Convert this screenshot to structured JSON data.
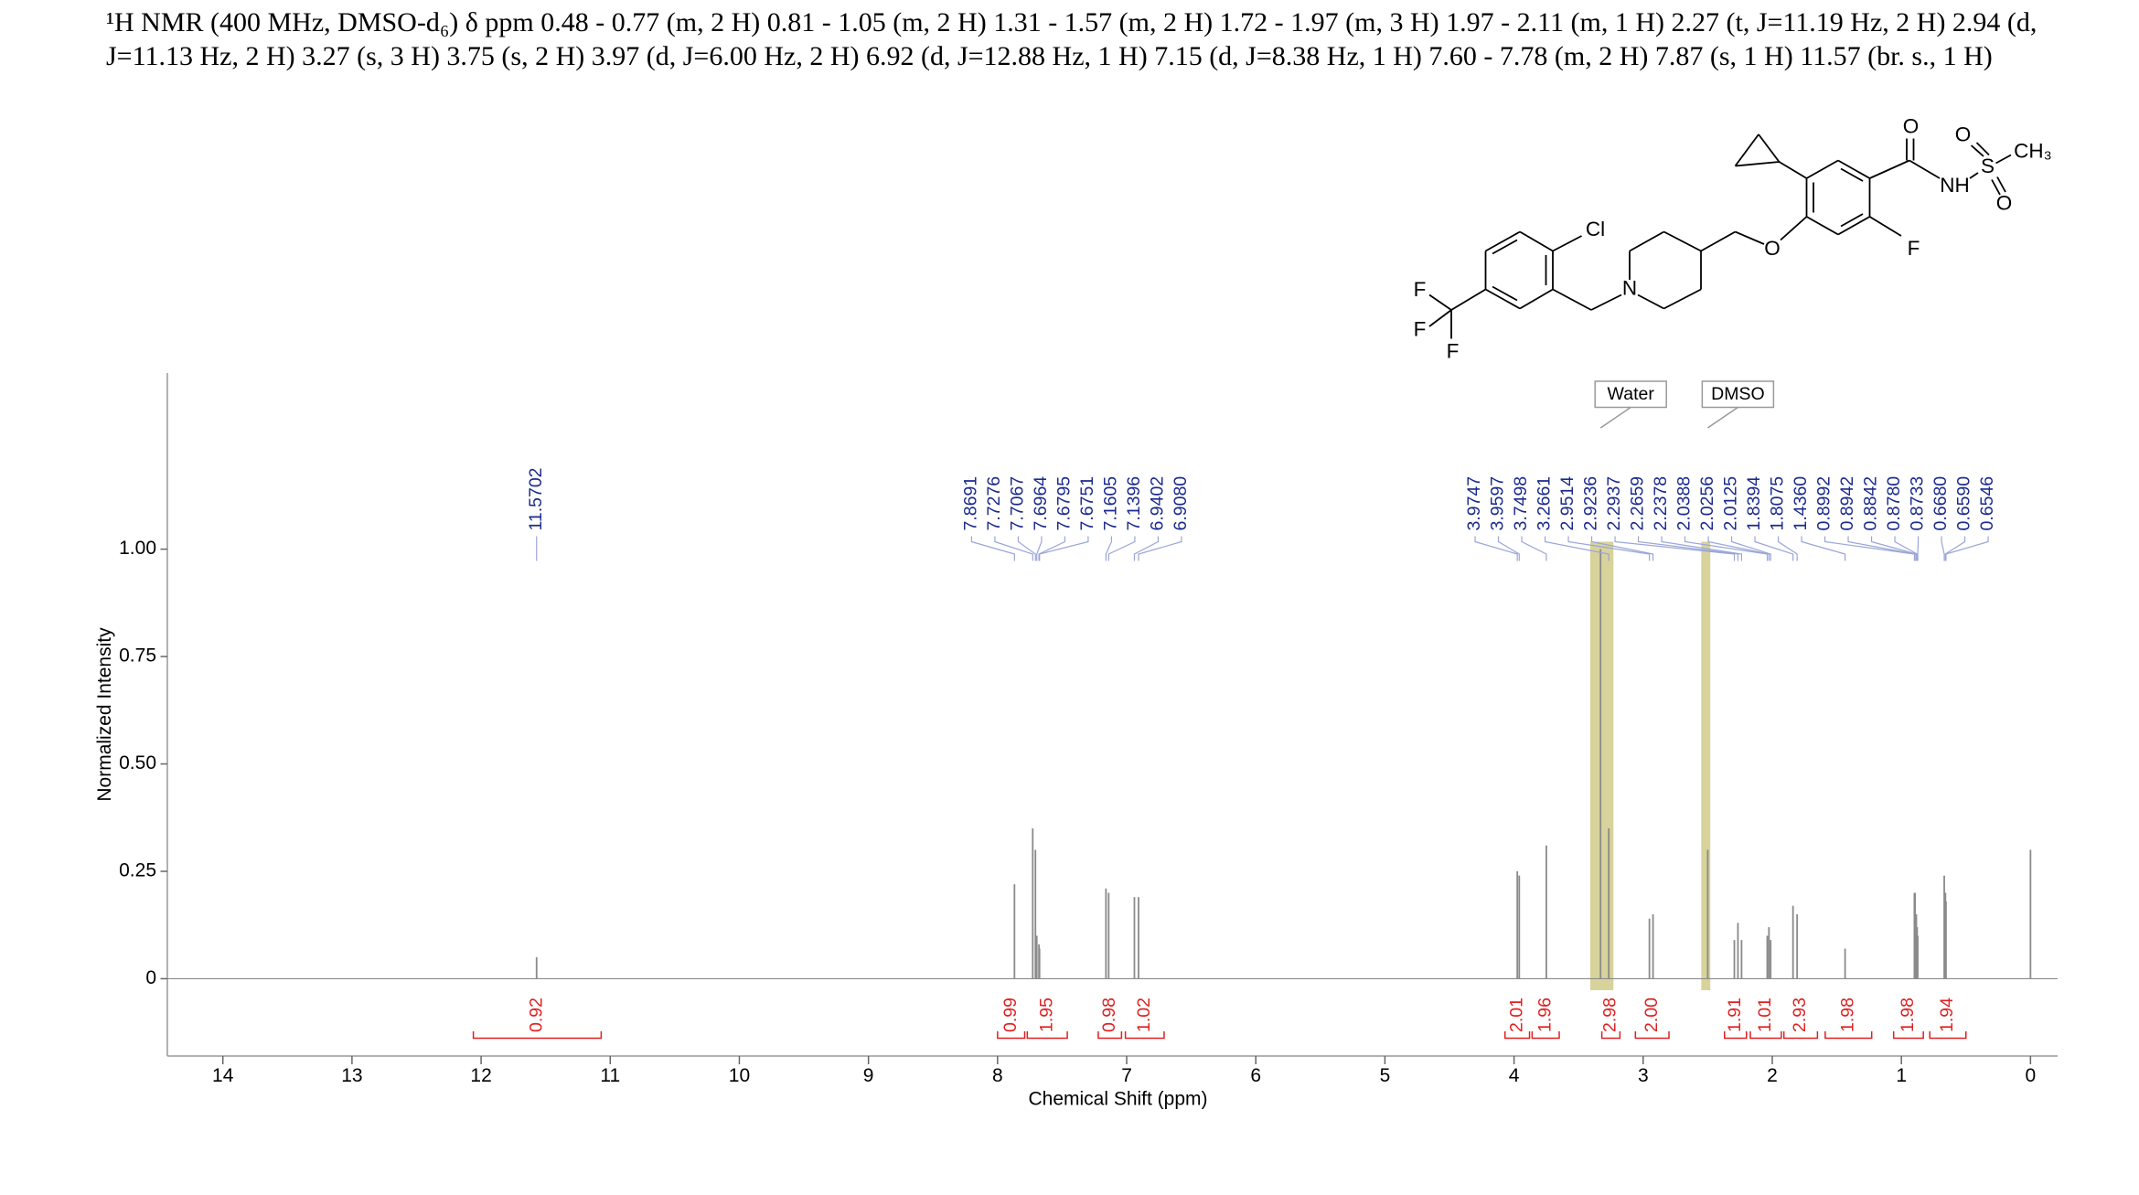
{
  "header": {
    "text": "¹H NMR (400 MHz, DMSO-d₆) δ ppm 0.48 - 0.77 (m, 2 H) 0.81 - 1.05 (m, 2 H) 1.31 - 1.57 (m, 2 H) 1.72 - 1.97 (m, 3 H) 1.97 - 2.11 (m, 1 H) 2.27 (t, J=11.19 Hz, 2 H) 2.94 (d, J=11.13 Hz, 2 H) 3.27 (s, 3 H) 3.75 (s, 2 H) 3.97 (d, J=6.00 Hz, 2 H) 6.92 (d, J=12.88 Hz, 1 H) 7.15 (d, J=8.38 Hz, 1 H) 7.60 - 7.78 (m, 2 H) 7.87 (s, 1 H) 11.57 (br. s., 1 H)"
  },
  "molecule": {
    "atoms": [
      "O",
      "O",
      "S",
      "CH₃",
      "NH",
      "O",
      "F",
      "O",
      "N",
      "Cl",
      "F",
      "F",
      "F"
    ]
  },
  "chart_data": {
    "type": "nmr",
    "x_label": "Chemical Shift (ppm)",
    "y_label": "Normalized Intensity",
    "xlim": [
      14.43,
      -0.21
    ],
    "xticks": [
      14,
      13,
      12,
      11,
      10,
      9,
      8,
      7,
      6,
      5,
      4,
      3,
      2,
      1,
      0
    ],
    "ylim": [
      -0.18,
      1.41
    ],
    "yticks": [
      0,
      0.25,
      {
        "value": 0.5,
        "label": "0.50"
      },
      0.75,
      {
        "value": 1,
        "label": "1.00"
      }
    ],
    "series": [
      {
        "name": "spectrum",
        "color": "#8a8a8a",
        "x": [
          11.5702,
          7.8691,
          7.7276,
          7.7067,
          7.6964,
          7.6795,
          7.6751,
          7.1605,
          7.1396,
          6.9402,
          6.908,
          3.9747,
          3.9597,
          3.7498,
          3.33,
          3.2661,
          2.9514,
          2.9236,
          2.5,
          2.2937,
          2.2659,
          2.2378,
          2.0388,
          2.0256,
          2.0125,
          1.8394,
          1.8075,
          1.436,
          0.8992,
          0.8942,
          0.8842,
          0.878,
          0.8733,
          0.668,
          0.659,
          0.6546,
          0
        ],
        "values": [
          0.05,
          0.22,
          0.35,
          0.3,
          0.1,
          0.08,
          0.07,
          0.21,
          0.2,
          0.19,
          0.19,
          0.25,
          0.24,
          0.31,
          1.0,
          0.35,
          0.14,
          0.15,
          0.3,
          0.09,
          0.13,
          0.09,
          0.1,
          0.12,
          0.09,
          0.17,
          0.15,
          0.07,
          0.2,
          0.2,
          0.15,
          0.12,
          0.1,
          0.24,
          0.2,
          0.18,
          0.3
        ]
      }
    ],
    "peak_labels": {
      "color": "#1a2a8c",
      "values": [
        11.5702,
        7.8691,
        7.7276,
        7.7067,
        7.6964,
        7.6795,
        7.6751,
        7.1605,
        7.1396,
        6.9402,
        6.908,
        3.9747,
        3.9597,
        3.7498,
        3.2661,
        2.9514,
        2.9236,
        2.2937,
        2.2659,
        2.2378,
        2.0388,
        2.0256,
        2.0125,
        1.8394,
        1.8075,
        1.436,
        0.8992,
        0.8942,
        0.8842,
        0.878,
        0.8733,
        0.668,
        0.659,
        0.6546
      ],
      "value_labels": [
        "11.5702",
        "7.8691",
        "7.7276",
        "7.7067",
        "7.6964",
        "7.6795",
        "7.6751",
        "7.1605",
        "7.1396",
        "6.9402",
        "6.9080",
        "3.9747",
        "3.9597",
        "3.7498",
        "3.2661",
        "2.9514",
        "2.9236",
        "2.2937",
        "2.2659",
        "2.2378",
        "2.0388",
        "2.0256",
        "2.0125",
        "1.8394",
        "1.8075",
        "1.4360",
        "0.8992",
        "0.8942",
        "0.8842",
        "0.8780",
        "0.8733",
        "0.6680",
        "0.6590",
        "0.6546"
      ]
    },
    "integrals": {
      "color": "#e02020",
      "values": [
        0.92,
        0.99,
        1.95,
        0.98,
        1.02,
        2.01,
        1.96,
        2.98,
        2.0,
        1.91,
        1.01,
        2.93,
        1.98,
        1.98,
        1.94
      ],
      "value_labels": [
        "0.92",
        "0.99",
        "1.95",
        "0.98",
        "1.02",
        "2.01",
        "1.96",
        "2.98",
        "2.00",
        "1.91",
        "1.01",
        "2.93",
        "1.98",
        "1.98",
        "1.94"
      ],
      "ranges": [
        [
          12.06,
          11.07
        ],
        [
          8.0,
          7.79
        ],
        [
          7.77,
          7.46
        ],
        [
          7.22,
          7.04
        ],
        [
          7.01,
          6.71
        ],
        [
          4.07,
          3.88
        ],
        [
          3.86,
          3.65
        ],
        [
          3.32,
          3.18
        ],
        [
          3.06,
          2.8
        ],
        [
          2.37,
          2.2
        ],
        [
          2.17,
          1.93
        ],
        [
          1.91,
          1.65
        ],
        [
          1.59,
          1.23
        ],
        [
          1.06,
          0.83
        ],
        [
          0.78,
          0.5
        ]
      ]
    },
    "annotations": [
      {
        "text": "Water",
        "x": 3.33,
        "band": [
          3.41,
          3.23
        ]
      },
      {
        "text": "DMSO",
        "x": 2.5,
        "band": [
          2.55,
          2.48
        ]
      }
    ]
  }
}
